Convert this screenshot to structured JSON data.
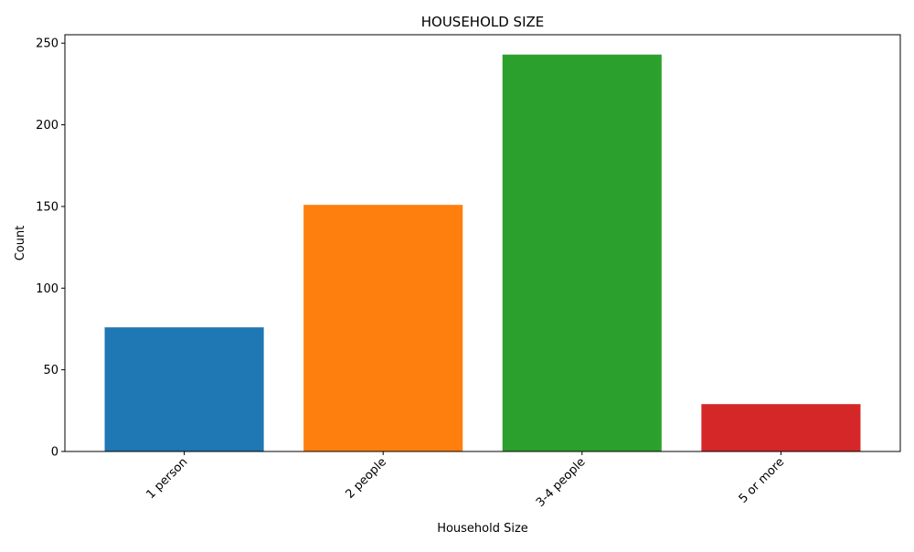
{
  "chart_data": {
    "type": "bar",
    "title": "HOUSEHOLD SIZE",
    "xlabel": "Household Size",
    "ylabel": "Count",
    "categories": [
      "1 person",
      "2 people",
      "3-4 people",
      "5 or more"
    ],
    "values": [
      76,
      151,
      243,
      29
    ],
    "colors": [
      "#1f77b4",
      "#ff7f0e",
      "#2ca02c",
      "#d62728"
    ],
    "ylim": [
      0,
      255.15
    ],
    "yticks": [
      0,
      50,
      100,
      150,
      200,
      250
    ],
    "grid": false,
    "legend": "none"
  }
}
